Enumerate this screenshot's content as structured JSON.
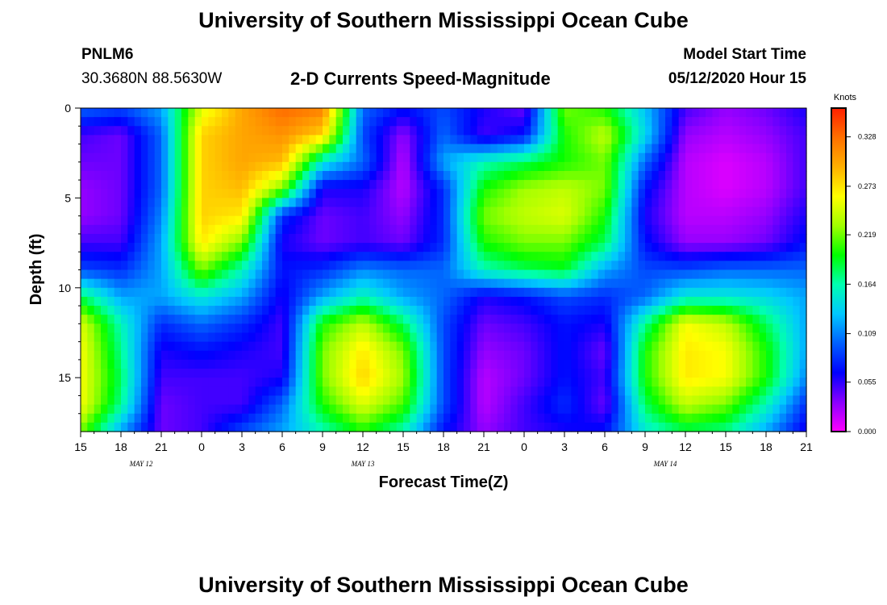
{
  "header": {
    "title": "University of Southern Mississippi Ocean Cube",
    "station": "PNLM6",
    "coords": "30.3680N 88.5630W",
    "subtitle": "2-D Currents Speed-Magnitude",
    "model_label": "Model Start Time",
    "model_time": "05/12/2020 Hour 15"
  },
  "footer": {
    "title": "University of Southern Mississippi Ocean Cube"
  },
  "colors": {
    "scale": [
      "#ff00ff",
      "#8a00ff",
      "#0000ff",
      "#0060ff",
      "#00c8ff",
      "#00ffb0",
      "#00ff00",
      "#a0ff00",
      "#ffff00",
      "#ffb000",
      "#ff7000",
      "#ff2000"
    ]
  },
  "chart_data": {
    "type": "heatmap",
    "title": "2-D Currents Speed-Magnitude",
    "xlabel": "Forecast Time(Z)",
    "ylabel": "Depth (ft)",
    "x_ticks": [
      "15",
      "18",
      "21",
      "0",
      "3",
      "6",
      "9",
      "12",
      "15",
      "18",
      "21",
      "0",
      "3",
      "6",
      "9",
      "12",
      "15",
      "18",
      "21"
    ],
    "x_tick_hours": [
      0,
      3,
      6,
      9,
      12,
      15,
      18,
      21,
      24,
      27,
      30,
      33,
      36,
      39,
      42,
      45,
      48,
      51,
      54
    ],
    "xlim_hours": [
      0,
      54
    ],
    "day_labels": [
      {
        "text": "MAY 12",
        "hour": 4.5
      },
      {
        "text": "MAY 13",
        "hour": 21
      },
      {
        "text": "MAY 14",
        "hour": 43.5
      }
    ],
    "y_ticks": [
      0,
      5,
      10,
      15
    ],
    "ylim": [
      0,
      18
    ],
    "y_inverted": true,
    "colorbar": {
      "title": "Knots",
      "ticks": [
        "0.328",
        "0.273",
        "0.219",
        "0.164",
        "0.109",
        "0.055",
        "0.000"
      ],
      "range": [
        0,
        0.36
      ]
    },
    "grid_note": "speed values in knots; rows = depth 0-18 ft, columns = forecast hours 0-54",
    "depths": [
      0,
      1.5,
      3,
      4.5,
      6,
      7.5,
      9,
      10.5,
      12,
      13.5,
      15,
      16.5,
      18
    ],
    "hours": [
      0,
      3,
      6,
      9,
      12,
      15,
      18,
      21,
      24,
      27,
      30,
      33,
      36,
      39,
      42,
      45,
      48,
      51,
      54
    ],
    "values": [
      [
        0.1,
        0.09,
        0.12,
        0.25,
        0.3,
        0.33,
        0.32,
        0.1,
        0.07,
        0.09,
        0.06,
        0.04,
        0.22,
        0.2,
        0.13,
        0.05,
        0.03,
        0.04,
        0.06
      ],
      [
        0.05,
        0.04,
        0.1,
        0.28,
        0.3,
        0.31,
        0.28,
        0.09,
        0.03,
        0.1,
        0.05,
        0.07,
        0.2,
        0.24,
        0.14,
        0.03,
        0.02,
        0.03,
        0.05
      ],
      [
        0.04,
        0.04,
        0.1,
        0.28,
        0.3,
        0.29,
        0.15,
        0.1,
        0.02,
        0.12,
        0.16,
        0.18,
        0.2,
        0.22,
        0.1,
        0.02,
        0.01,
        0.02,
        0.05
      ],
      [
        0.03,
        0.04,
        0.1,
        0.28,
        0.29,
        0.22,
        0.06,
        0.06,
        0.02,
        0.08,
        0.2,
        0.23,
        0.24,
        0.22,
        0.07,
        0.02,
        0.01,
        0.02,
        0.05
      ],
      [
        0.03,
        0.04,
        0.11,
        0.28,
        0.27,
        0.08,
        0.04,
        0.05,
        0.03,
        0.08,
        0.22,
        0.24,
        0.25,
        0.2,
        0.06,
        0.02,
        0.02,
        0.03,
        0.06
      ],
      [
        0.05,
        0.05,
        0.12,
        0.27,
        0.22,
        0.06,
        0.04,
        0.05,
        0.04,
        0.08,
        0.2,
        0.22,
        0.22,
        0.18,
        0.07,
        0.03,
        0.03,
        0.04,
        0.07
      ],
      [
        0.09,
        0.08,
        0.12,
        0.22,
        0.16,
        0.07,
        0.08,
        0.11,
        0.1,
        0.1,
        0.16,
        0.18,
        0.19,
        0.12,
        0.09,
        0.09,
        0.1,
        0.1,
        0.1
      ],
      [
        0.18,
        0.12,
        0.12,
        0.15,
        0.12,
        0.06,
        0.12,
        0.16,
        0.12,
        0.1,
        0.06,
        0.07,
        0.09,
        0.08,
        0.1,
        0.15,
        0.15,
        0.14,
        0.12
      ],
      [
        0.25,
        0.16,
        0.08,
        0.1,
        0.08,
        0.05,
        0.2,
        0.24,
        0.18,
        0.09,
        0.04,
        0.05,
        0.07,
        0.06,
        0.17,
        0.26,
        0.24,
        0.18,
        0.12
      ],
      [
        0.26,
        0.17,
        0.06,
        0.07,
        0.06,
        0.05,
        0.22,
        0.27,
        0.22,
        0.09,
        0.03,
        0.04,
        0.07,
        0.04,
        0.2,
        0.27,
        0.26,
        0.2,
        0.12
      ],
      [
        0.26,
        0.18,
        0.05,
        0.05,
        0.05,
        0.06,
        0.22,
        0.28,
        0.23,
        0.09,
        0.02,
        0.04,
        0.07,
        0.05,
        0.2,
        0.27,
        0.26,
        0.2,
        0.11
      ],
      [
        0.26,
        0.17,
        0.04,
        0.05,
        0.05,
        0.1,
        0.2,
        0.25,
        0.21,
        0.09,
        0.02,
        0.05,
        0.08,
        0.04,
        0.18,
        0.24,
        0.22,
        0.16,
        0.08
      ],
      [
        0.22,
        0.12,
        0.04,
        0.05,
        0.09,
        0.12,
        0.16,
        0.2,
        0.16,
        0.07,
        0.03,
        0.05,
        0.06,
        0.07,
        0.15,
        0.18,
        0.17,
        0.12,
        0.06
      ]
    ]
  }
}
